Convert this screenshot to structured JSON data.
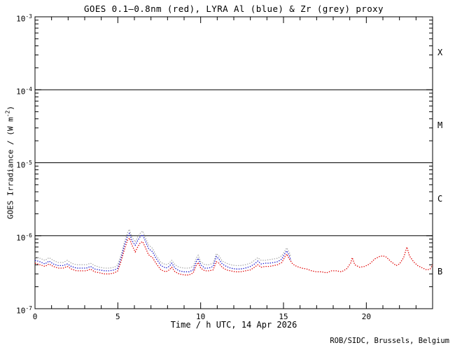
{
  "title": "GOES 0.1–0.8nm (red), LYRA Al (blue) & Zr (grey) proxy",
  "footer": "ROB/SIDC, Brussels, Belgium",
  "axes": {
    "x_title": "Time / h UTC, 14 Apr 2026",
    "x_range": [
      0,
      24
    ],
    "x_major_ticks": [
      "0",
      "5",
      "10",
      "15",
      "20"
    ],
    "x_major_values": [
      0,
      5,
      10,
      15,
      20
    ],
    "x_minor_step": 1,
    "y_title": {
      "prefix": "GOES Irradiance / (W m",
      "exp": "-2",
      "suffix": ")"
    },
    "y_tick_base": "10",
    "y_tick_exponents": [
      "-3",
      "-4",
      "-5",
      "-6",
      "-7"
    ],
    "grid_line_exponents": [
      -4,
      -5,
      -6
    ],
    "flare_class_labels": [
      "X",
      "M",
      "C",
      "B"
    ]
  },
  "colors": {
    "goes_red": "#e00000",
    "lyra_al_blue": "#1515cf",
    "lyra_zr_grey": "#a8a8a8",
    "axis": "#000000",
    "background": "#ffffff"
  },
  "chart_data": {
    "type": "line",
    "title": "GOES 0.1–0.8nm (red), LYRA Al (blue) & Zr (grey) proxy",
    "xlabel": "Time / h UTC, 14 Apr 2026",
    "ylabel": "GOES Irradiance / (W m-2)",
    "x_unit": "hours UTC",
    "y_unit": "W m-2",
    "y_scale": "log",
    "x_range": [
      0,
      24
    ],
    "y_range": [
      1e-07,
      0.001
    ],
    "grid": "decade horizontal lines at 1e-4, 1e-5, 1e-6",
    "legend_position": "in title",
    "value_multiplier": 1e-07,
    "series": [
      {
        "name": "LYRA Zr proxy",
        "color": "lyra_zr_grey",
        "points": [
          [
            0,
            5.1
          ],
          [
            0.3,
            4.9
          ],
          [
            0.6,
            4.6
          ],
          [
            0.85,
            5.0
          ],
          [
            1.1,
            4.6
          ],
          [
            1.4,
            4.3
          ],
          [
            1.7,
            4.3
          ],
          [
            1.95,
            4.6
          ],
          [
            2.2,
            4.2
          ],
          [
            2.5,
            4.0
          ],
          [
            2.8,
            4.0
          ],
          [
            3.1,
            4.0
          ],
          [
            3.35,
            4.2
          ],
          [
            3.6,
            3.9
          ],
          [
            3.9,
            3.7
          ],
          [
            4.2,
            3.6
          ],
          [
            4.5,
            3.6
          ],
          [
            4.8,
            3.7
          ],
          [
            5.0,
            4.0
          ],
          [
            5.2,
            5.5
          ],
          [
            5.4,
            8.2
          ],
          [
            5.6,
            11.2
          ],
          [
            5.7,
            12.2
          ],
          [
            5.85,
            9.6
          ],
          [
            6.05,
            8.2
          ],
          [
            6.2,
            9.6
          ],
          [
            6.35,
            10.8
          ],
          [
            6.5,
            11.6
          ],
          [
            6.65,
            9.6
          ],
          [
            6.85,
            7.5
          ],
          [
            7.1,
            6.7
          ],
          [
            7.3,
            5.4
          ],
          [
            7.6,
            4.3
          ],
          [
            7.9,
            4.0
          ],
          [
            8.1,
            4.2
          ],
          [
            8.25,
            4.6
          ],
          [
            8.45,
            4.0
          ],
          [
            8.7,
            3.7
          ],
          [
            9.0,
            3.6
          ],
          [
            9.3,
            3.6
          ],
          [
            9.55,
            3.8
          ],
          [
            9.75,
            5.0
          ],
          [
            9.85,
            5.4
          ],
          [
            10.0,
            4.4
          ],
          [
            10.25,
            4.0
          ],
          [
            10.5,
            4.0
          ],
          [
            10.75,
            4.2
          ],
          [
            10.95,
            5.7
          ],
          [
            11.1,
            5.3
          ],
          [
            11.3,
            4.5
          ],
          [
            11.55,
            4.2
          ],
          [
            11.8,
            4.0
          ],
          [
            12.1,
            3.9
          ],
          [
            12.4,
            3.9
          ],
          [
            12.7,
            4.0
          ],
          [
            13.0,
            4.2
          ],
          [
            13.25,
            4.6
          ],
          [
            13.45,
            5.0
          ],
          [
            13.65,
            4.6
          ],
          [
            13.9,
            4.6
          ],
          [
            14.15,
            4.7
          ],
          [
            14.4,
            4.8
          ],
          [
            14.65,
            4.9
          ],
          [
            14.9,
            5.3
          ],
          [
            15.1,
            6.3
          ],
          [
            15.2,
            6.8
          ],
          [
            15.35,
            5.9
          ],
          [
            15.45,
            5.1
          ]
        ]
      },
      {
        "name": "LYRA Al proxy",
        "color": "lyra_al_blue",
        "points": [
          [
            0,
            4.6
          ],
          [
            0.3,
            4.4
          ],
          [
            0.6,
            4.1
          ],
          [
            0.85,
            4.5
          ],
          [
            1.1,
            4.1
          ],
          [
            1.4,
            3.9
          ],
          [
            1.7,
            3.9
          ],
          [
            1.95,
            4.1
          ],
          [
            2.2,
            3.8
          ],
          [
            2.5,
            3.6
          ],
          [
            2.8,
            3.6
          ],
          [
            3.1,
            3.6
          ],
          [
            3.35,
            3.8
          ],
          [
            3.6,
            3.5
          ],
          [
            3.9,
            3.4
          ],
          [
            4.2,
            3.3
          ],
          [
            4.5,
            3.3
          ],
          [
            4.8,
            3.4
          ],
          [
            5.0,
            3.6
          ],
          [
            5.2,
            5.0
          ],
          [
            5.4,
            7.4
          ],
          [
            5.6,
            10.0
          ],
          [
            5.7,
            10.8
          ],
          [
            5.85,
            8.6
          ],
          [
            6.05,
            7.4
          ],
          [
            6.2,
            8.6
          ],
          [
            6.35,
            9.7
          ],
          [
            6.5,
            10.3
          ],
          [
            6.65,
            8.6
          ],
          [
            6.85,
            6.7
          ],
          [
            7.1,
            6.0
          ],
          [
            7.3,
            4.9
          ],
          [
            7.6,
            3.9
          ],
          [
            7.9,
            3.6
          ],
          [
            8.1,
            3.8
          ],
          [
            8.25,
            4.2
          ],
          [
            8.45,
            3.6
          ],
          [
            8.7,
            3.3
          ],
          [
            9.0,
            3.2
          ],
          [
            9.3,
            3.2
          ],
          [
            9.55,
            3.4
          ],
          [
            9.75,
            4.5
          ],
          [
            9.85,
            4.9
          ],
          [
            10.0,
            4.0
          ],
          [
            10.25,
            3.6
          ],
          [
            10.5,
            3.6
          ],
          [
            10.75,
            3.8
          ],
          [
            10.95,
            5.2
          ],
          [
            11.1,
            4.8
          ],
          [
            11.3,
            4.1
          ],
          [
            11.55,
            3.8
          ],
          [
            11.8,
            3.6
          ],
          [
            12.1,
            3.5
          ],
          [
            12.4,
            3.5
          ],
          [
            12.7,
            3.6
          ],
          [
            13.0,
            3.8
          ],
          [
            13.25,
            4.1
          ],
          [
            13.45,
            4.5
          ],
          [
            13.65,
            4.1
          ],
          [
            13.9,
            4.2
          ],
          [
            14.15,
            4.2
          ],
          [
            14.4,
            4.3
          ],
          [
            14.65,
            4.4
          ],
          [
            14.9,
            4.8
          ],
          [
            15.1,
            5.8
          ],
          [
            15.2,
            6.2
          ],
          [
            15.35,
            5.3
          ],
          [
            15.45,
            4.6
          ]
        ]
      },
      {
        "name": "GOES 0.1-0.8nm",
        "color": "goes_red",
        "points": [
          [
            0,
            4.2
          ],
          [
            0.3,
            4.0
          ],
          [
            0.6,
            3.8
          ],
          [
            0.85,
            4.1
          ],
          [
            1.1,
            3.8
          ],
          [
            1.4,
            3.6
          ],
          [
            1.7,
            3.6
          ],
          [
            1.95,
            3.8
          ],
          [
            2.2,
            3.5
          ],
          [
            2.5,
            3.3
          ],
          [
            2.8,
            3.3
          ],
          [
            3.1,
            3.3
          ],
          [
            3.35,
            3.5
          ],
          [
            3.6,
            3.2
          ],
          [
            3.9,
            3.1
          ],
          [
            4.2,
            3.0
          ],
          [
            4.5,
            3.0
          ],
          [
            4.8,
            3.1
          ],
          [
            5.0,
            3.3
          ],
          [
            5.2,
            4.5
          ],
          [
            5.4,
            6.5
          ],
          [
            5.6,
            8.8
          ],
          [
            5.7,
            9.3
          ],
          [
            5.85,
            7.5
          ],
          [
            6.05,
            6.0
          ],
          [
            6.2,
            7.0
          ],
          [
            6.35,
            8.0
          ],
          [
            6.5,
            8.3
          ],
          [
            6.65,
            7.0
          ],
          [
            6.85,
            5.5
          ],
          [
            7.1,
            5.0
          ],
          [
            7.3,
            4.2
          ],
          [
            7.6,
            3.4
          ],
          [
            7.9,
            3.2
          ],
          [
            8.1,
            3.4
          ],
          [
            8.25,
            3.7
          ],
          [
            8.45,
            3.2
          ],
          [
            8.7,
            3.0
          ],
          [
            9.0,
            2.9
          ],
          [
            9.3,
            2.9
          ],
          [
            9.55,
            3.1
          ],
          [
            9.75,
            4.0
          ],
          [
            9.85,
            4.3
          ],
          [
            10.0,
            3.6
          ],
          [
            10.25,
            3.3
          ],
          [
            10.5,
            3.3
          ],
          [
            10.75,
            3.4
          ],
          [
            10.95,
            4.4
          ],
          [
            11.1,
            4.2
          ],
          [
            11.3,
            3.7
          ],
          [
            11.55,
            3.4
          ],
          [
            11.8,
            3.3
          ],
          [
            12.1,
            3.2
          ],
          [
            12.4,
            3.2
          ],
          [
            12.7,
            3.3
          ],
          [
            13.0,
            3.4
          ],
          [
            13.25,
            3.7
          ],
          [
            13.45,
            4.0
          ],
          [
            13.65,
            3.7
          ],
          [
            13.9,
            3.8
          ],
          [
            14.15,
            3.8
          ],
          [
            14.4,
            3.9
          ],
          [
            14.65,
            4.0
          ],
          [
            14.9,
            4.3
          ],
          [
            15.1,
            5.2
          ],
          [
            15.2,
            5.6
          ],
          [
            15.35,
            4.8
          ],
          [
            15.55,
            4.1
          ],
          [
            15.8,
            3.8
          ],
          [
            16.1,
            3.6
          ],
          [
            16.4,
            3.5
          ],
          [
            16.7,
            3.3
          ],
          [
            17.0,
            3.2
          ],
          [
            17.3,
            3.2
          ],
          [
            17.6,
            3.1
          ],
          [
            17.9,
            3.3
          ],
          [
            18.2,
            3.3
          ],
          [
            18.5,
            3.2
          ],
          [
            18.8,
            3.5
          ],
          [
            19.05,
            4.2
          ],
          [
            19.15,
            5.0
          ],
          [
            19.3,
            4.0
          ],
          [
            19.6,
            3.7
          ],
          [
            19.9,
            3.8
          ],
          [
            20.2,
            4.1
          ],
          [
            20.5,
            4.8
          ],
          [
            20.8,
            5.2
          ],
          [
            21.0,
            5.3
          ],
          [
            21.2,
            5.1
          ],
          [
            21.5,
            4.4
          ],
          [
            21.8,
            3.9
          ],
          [
            22.0,
            4.1
          ],
          [
            22.25,
            5.0
          ],
          [
            22.45,
            7.0
          ],
          [
            22.6,
            5.3
          ],
          [
            22.85,
            4.4
          ],
          [
            23.1,
            3.9
          ],
          [
            23.4,
            3.6
          ],
          [
            23.65,
            3.4
          ],
          [
            23.85,
            3.5
          ],
          [
            24,
            4.0
          ]
        ]
      }
    ]
  }
}
